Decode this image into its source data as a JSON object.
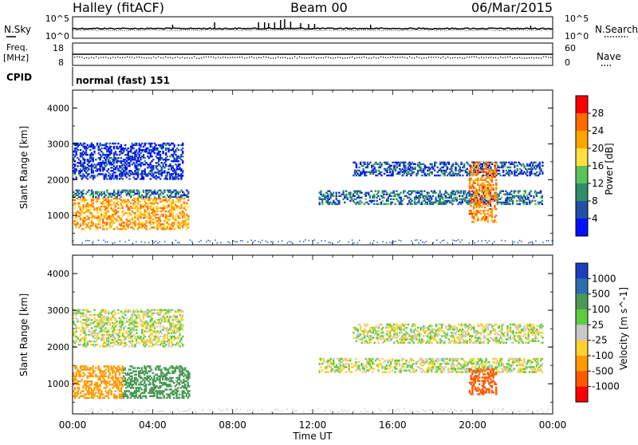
{
  "header": {
    "station": "Halley (fitACF)",
    "beam": "Beam 00",
    "date": "06/Mar/2015"
  },
  "strip_labels": {
    "nsky": "N.Sky",
    "nsky_top": "10^5",
    "nsky_bottom": "10^0",
    "nsearch": "N.Search",
    "nsearch_top": "10^5",
    "nsearch_bottom": "10^0",
    "freq_line1": "Freq.",
    "freq_line2": "[MHz]",
    "freq_top": "18",
    "freq_bottom": "8",
    "nave": "Nave",
    "nave_top": "60",
    "nave_bottom": "0",
    "cpid": "CPID",
    "cpid_value": "normal (fast) 151"
  },
  "axes": {
    "ylabel": "Slant Range [km]",
    "xlabel": "Time UT",
    "yticks": [
      "4000",
      "3000",
      "2000",
      "1000"
    ],
    "xticks": [
      "00:00",
      "04:00",
      "08:00",
      "12:00",
      "16:00",
      "20:00",
      "00:00"
    ]
  },
  "power_scale": {
    "label": "Power [dB]",
    "ticks": [
      "28",
      "24",
      "20",
      "16",
      "12",
      "8",
      "4"
    ],
    "colors": [
      "#ff0000",
      "#ff6a00",
      "#ffa500",
      "#ffe040",
      "#58c35a",
      "#2f8d6a",
      "#2050a8",
      "#0010ff"
    ]
  },
  "velocity_scale": {
    "label": "Velocity [m s^-1]",
    "ticks": [
      "1000",
      "500",
      "100",
      "25",
      "-25",
      "-100",
      "-500",
      "-1000"
    ],
    "colors": [
      "#1a40c0",
      "#2f6fb0",
      "#4a9a56",
      "#60cc40",
      "#c8c8c8",
      "#ffd030",
      "#ff9a00",
      "#ff5a00",
      "#ff0000"
    ]
  },
  "chart_data": [
    {
      "type": "heatmap",
      "title": "Power",
      "xlabel": "Time UT",
      "ylabel": "Slant Range [km]",
      "xlim": [
        0,
        24
      ],
      "ylim": [
        180,
        4500
      ],
      "colorbar": {
        "label": "Power [dB]",
        "range": [
          0,
          32
        ]
      },
      "regions": [
        {
          "t": [
            0,
            5.8
          ],
          "r": [
            600,
            1500
          ],
          "value": 22
        },
        {
          "t": [
            0,
            5.8
          ],
          "r": [
            1500,
            1700
          ],
          "value": 8
        },
        {
          "t": [
            0,
            5.5
          ],
          "r": [
            2000,
            3000
          ],
          "value": 4
        },
        {
          "t": [
            12.3,
            23.5
          ],
          "r": [
            1300,
            1700
          ],
          "value": 8
        },
        {
          "t": [
            14,
            23.5
          ],
          "r": [
            2100,
            2500
          ],
          "value": 6
        },
        {
          "t": [
            19.8,
            21.2
          ],
          "r": [
            800,
            2500
          ],
          "value": 24
        }
      ]
    },
    {
      "type": "heatmap",
      "title": "Velocity",
      "xlabel": "Time UT",
      "ylabel": "Slant Range [km]",
      "xlim": [
        0,
        24
      ],
      "ylim": [
        180,
        4500
      ],
      "colorbar": {
        "label": "Velocity [m s^-1]",
        "range": [
          -1000,
          1000
        ]
      },
      "regions": [
        {
          "t": [
            0,
            2.5
          ],
          "r": [
            600,
            1500
          ],
          "value": -300
        },
        {
          "t": [
            2.5,
            5.8
          ],
          "r": [
            600,
            1500
          ],
          "value": 400
        },
        {
          "t": [
            0,
            5.5
          ],
          "r": [
            2000,
            3000
          ],
          "value": 0
        },
        {
          "t": [
            12.3,
            23.5
          ],
          "r": [
            1300,
            1700
          ],
          "value": 0
        },
        {
          "t": [
            14,
            23.5
          ],
          "r": [
            2100,
            2600
          ],
          "value": 0
        },
        {
          "t": [
            19.8,
            21.2
          ],
          "r": [
            700,
            1400
          ],
          "value": -600
        }
      ]
    }
  ]
}
